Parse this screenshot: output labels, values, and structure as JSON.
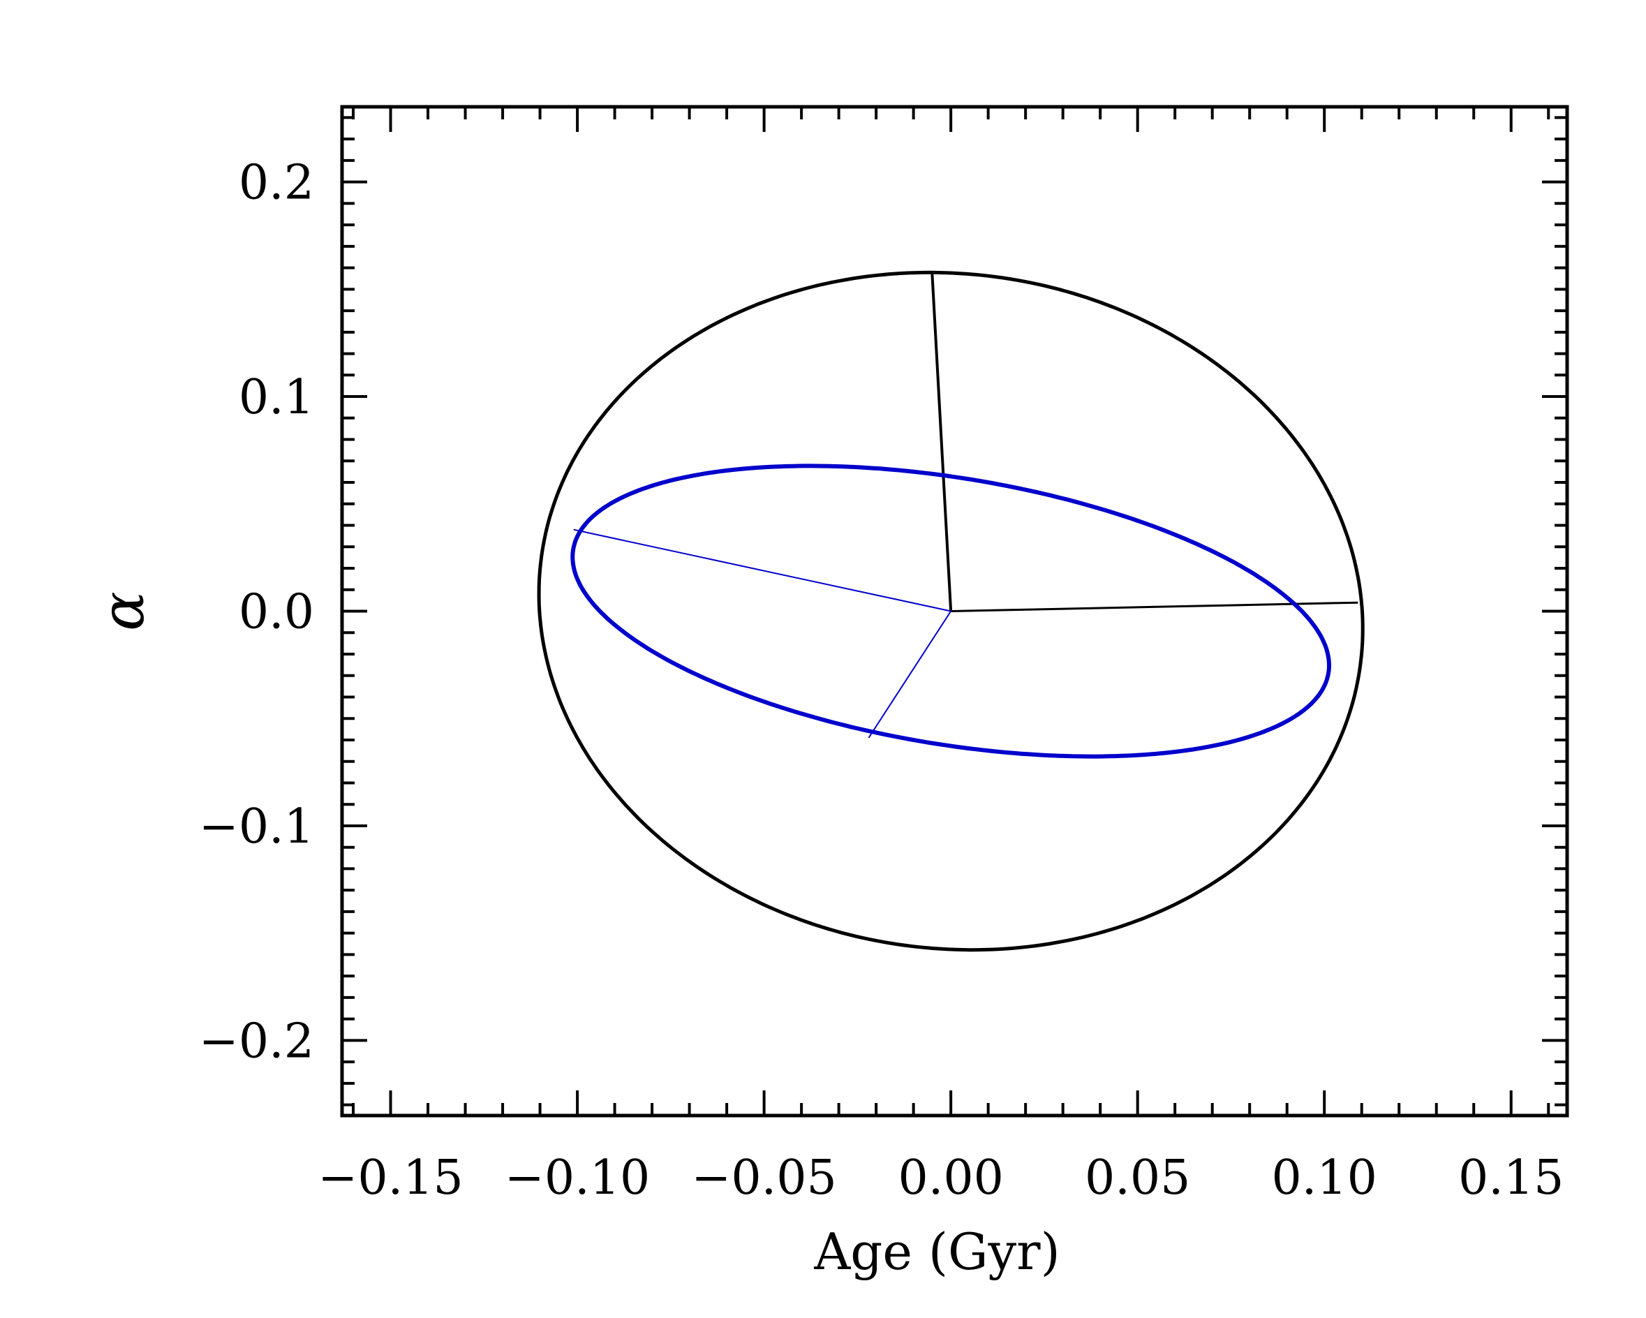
{
  "chart_data": {
    "type": "line",
    "title": "",
    "xlabel": "Age (Gyr)",
    "ylabel": "α",
    "xlim": [
      -0.163,
      0.165
    ],
    "ylim": [
      -0.235,
      0.235
    ],
    "grid": false,
    "x_ticks": [
      -0.15,
      -0.1,
      -0.05,
      0.0,
      0.05,
      0.1,
      0.15
    ],
    "x_tick_labels": [
      "−0.15",
      "−0.10",
      "−0.05",
      "0.00",
      "0.05",
      "0.10",
      "0.15"
    ],
    "y_ticks": [
      -0.2,
      -0.1,
      0.0,
      0.1,
      0.2
    ],
    "y_tick_labels": [
      "−0.2",
      "−0.1",
      "0.0",
      "0.1",
      "0.2"
    ],
    "series": [
      {
        "kind": "ellipse",
        "color": "#000000",
        "center": [
          0.0,
          0.0
        ],
        "semi_major": 0.158,
        "semi_minor": 0.11,
        "angle_deg": 94,
        "axis_lines": [
          {
            "from": [
              0.0,
              0.0
            ],
            "to": [
              -0.005,
              0.157
            ]
          },
          {
            "from": [
              0.0,
              0.0
            ],
            "to": [
              0.109,
              0.004
            ]
          }
        ]
      },
      {
        "kind": "ellipse",
        "color": "#0000cc",
        "center": [
          0.0,
          0.0
        ],
        "semi_major": 0.106,
        "semi_minor": 0.06,
        "angle_deg": 159,
        "axis_lines": [
          {
            "from": [
              0.0,
              0.0
            ],
            "to": [
              -0.101,
              0.038
            ]
          },
          {
            "from": [
              0.0,
              0.0
            ],
            "to": [
              -0.022,
              -0.059
            ]
          }
        ]
      }
    ]
  }
}
